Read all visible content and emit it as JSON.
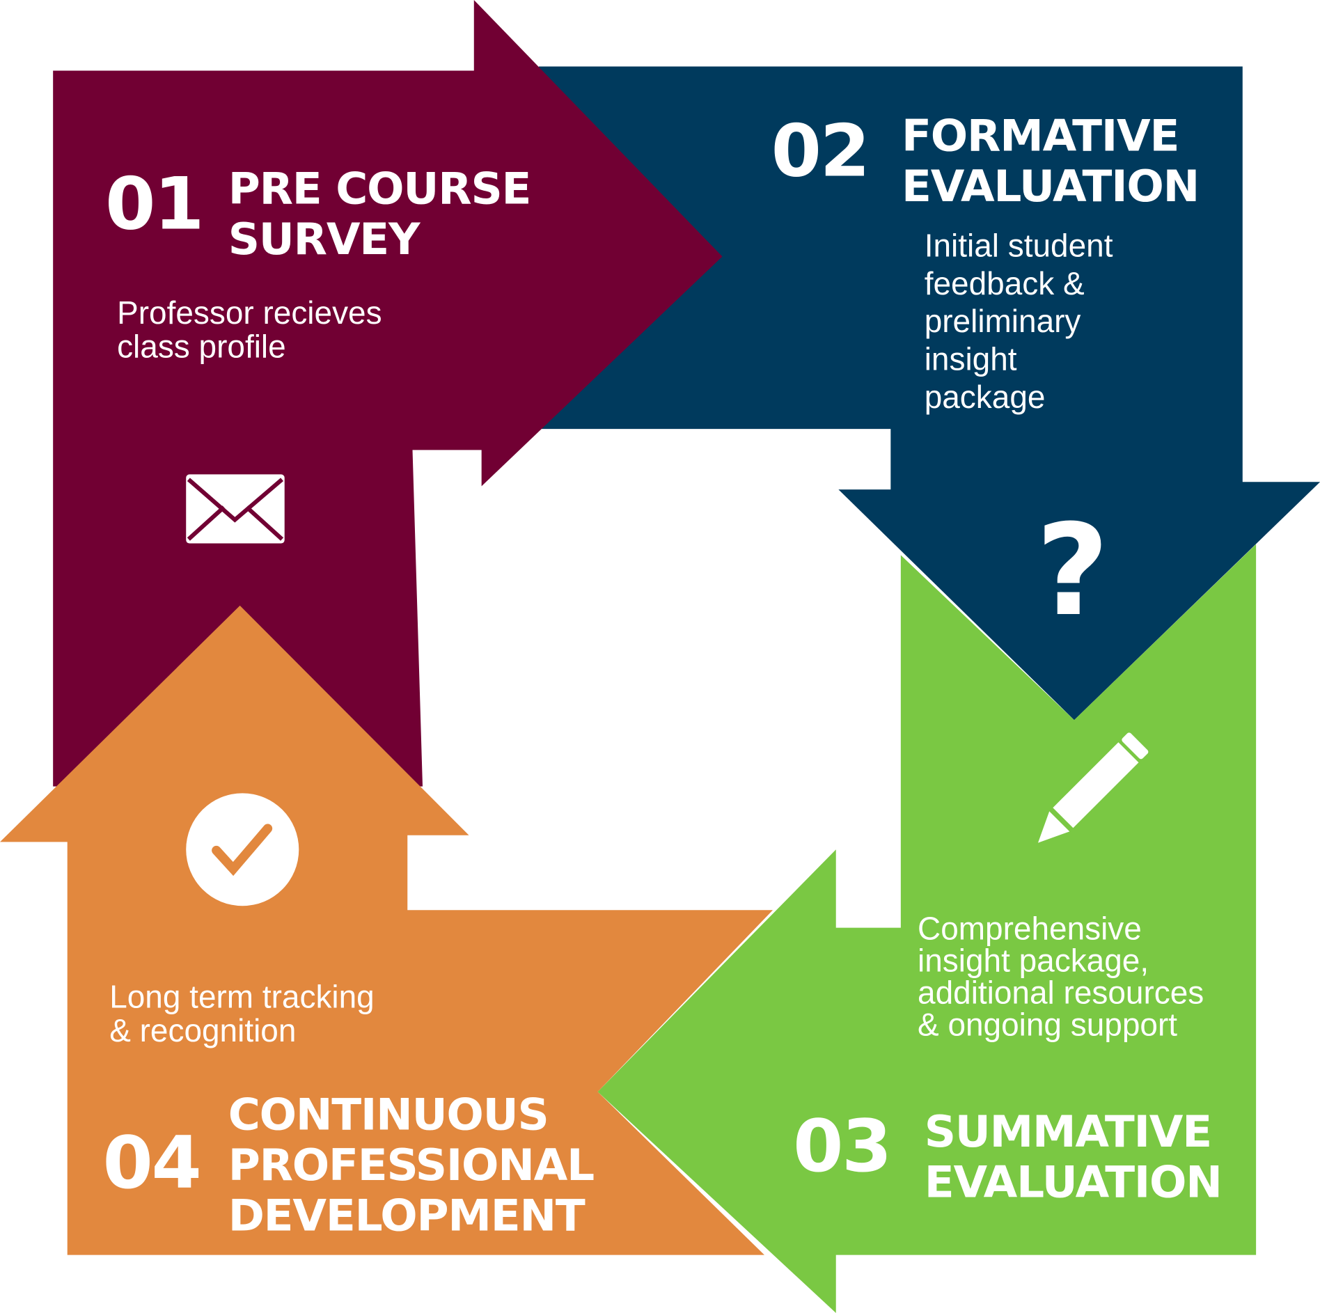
{
  "colors": {
    "step1": "#710033",
    "step2": "#003a5d",
    "step3": "#7ac843",
    "step4": "#e2883e"
  },
  "steps": [
    {
      "number": "01",
      "title": "PRE COURSE\nSURVEY",
      "description": "Professor recieves\nclass profile",
      "icon": "envelope-icon"
    },
    {
      "number": "02",
      "title": "FORMATIVE\nEVALUATION",
      "description": "Initial student\nfeedback &\npreliminary\ninsight\npackage",
      "icon": "question-mark-icon"
    },
    {
      "number": "03",
      "title": "SUMMATIVE\nEVALUATION",
      "description": "Comprehensive\ninsight package,\nadditional resources\n& ongoing support",
      "icon": "pencil-icon"
    },
    {
      "number": "04",
      "title": "CONTINUOUS\nPROFESSIONAL\nDEVELOPMENT",
      "description": "Long term tracking\n& recognition",
      "icon": "checkmark-circle-icon"
    }
  ]
}
